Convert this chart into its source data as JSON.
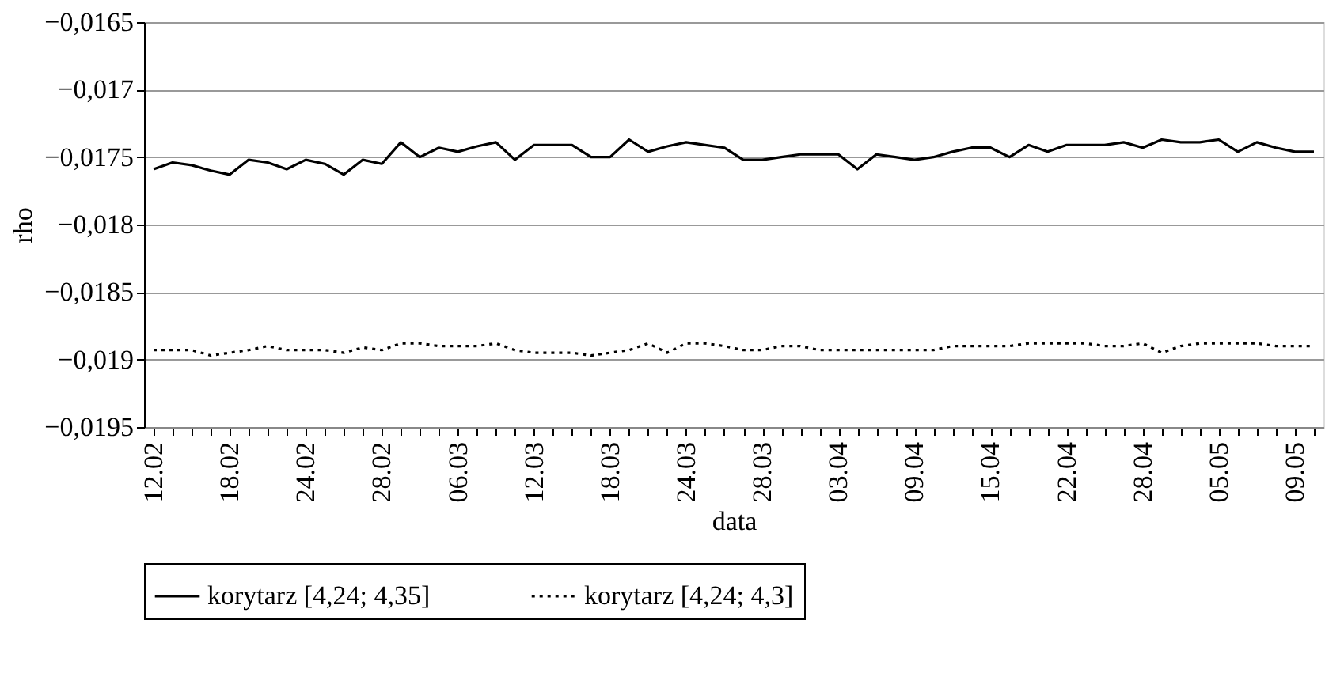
{
  "chart_data": {
    "type": "line",
    "xlabel": "data",
    "ylabel": "rho",
    "categories": [
      "12.02",
      null,
      null,
      null,
      "18.02",
      null,
      null,
      null,
      "24.02",
      null,
      null,
      null,
      "28.02",
      null,
      null,
      null,
      "06.03",
      null,
      null,
      null,
      "12.03",
      null,
      null,
      null,
      "18.03",
      null,
      null,
      null,
      "24.03",
      null,
      null,
      null,
      "28.03",
      null,
      null,
      null,
      "03.04",
      null,
      null,
      null,
      "09.04",
      null,
      null,
      null,
      "15.04",
      null,
      null,
      null,
      "22.04",
      null,
      null,
      null,
      "28.04",
      null,
      null,
      null,
      "05.05",
      null,
      null,
      null,
      "09.05",
      null
    ],
    "series": [
      {
        "name": "korytarz [4,24; 4,35]",
        "color": "#000000",
        "line_style": "solid",
        "values": [
          -0.01759,
          -0.01754,
          -0.01756,
          -0.0176,
          -0.01763,
          -0.01752,
          -0.01754,
          -0.01759,
          -0.01752,
          -0.01755,
          -0.01763,
          -0.01752,
          -0.01755,
          -0.01739,
          -0.0175,
          -0.01743,
          -0.01746,
          -0.01742,
          -0.01739,
          -0.01752,
          -0.01741,
          -0.01741,
          -0.01741,
          -0.0175,
          -0.0175,
          -0.01737,
          -0.01746,
          -0.01742,
          -0.01739,
          -0.01741,
          -0.01743,
          -0.01752,
          -0.01752,
          -0.0175,
          -0.01748,
          -0.01748,
          -0.01748,
          -0.01759,
          -0.01748,
          -0.0175,
          -0.01752,
          -0.0175,
          -0.01746,
          -0.01743,
          -0.01743,
          -0.0175,
          -0.01741,
          -0.01746,
          -0.01741,
          -0.01741,
          -0.01741,
          -0.01739,
          -0.01743,
          -0.01737,
          -0.01739,
          -0.01739,
          -0.01737,
          -0.01746,
          -0.01739,
          -0.01743,
          -0.01746,
          -0.01746
        ]
      },
      {
        "name": "korytarz [4,24; 4,3]",
        "color": "#000000",
        "line_style": "dotted",
        "values": [
          -0.01893,
          -0.01893,
          -0.01893,
          -0.01897,
          -0.01895,
          -0.01893,
          -0.0189,
          -0.01893,
          -0.01893,
          -0.01893,
          -0.01895,
          -0.01891,
          -0.01893,
          -0.01888,
          -0.01888,
          -0.0189,
          -0.0189,
          -0.0189,
          -0.01888,
          -0.01893,
          -0.01895,
          -0.01895,
          -0.01895,
          -0.01897,
          -0.01895,
          -0.01893,
          -0.01888,
          -0.01895,
          -0.01888,
          -0.01888,
          -0.0189,
          -0.01893,
          -0.01893,
          -0.0189,
          -0.0189,
          -0.01893,
          -0.01893,
          -0.01893,
          -0.01893,
          -0.01893,
          -0.01893,
          -0.01893,
          -0.0189,
          -0.0189,
          -0.0189,
          -0.0189,
          -0.01888,
          -0.01888,
          -0.01888,
          -0.01888,
          -0.0189,
          -0.0189,
          -0.01888,
          -0.01895,
          -0.0189,
          -0.01888,
          -0.01888,
          -0.01888,
          -0.01888,
          -0.0189,
          -0.0189,
          -0.0189
        ]
      }
    ],
    "ylim": [
      -0.0195,
      -0.0165
    ],
    "yticks": [
      {
        "value": -0.0195,
        "label": "−0,0195"
      },
      {
        "value": -0.019,
        "label": "−0,019"
      },
      {
        "value": -0.0185,
        "label": "−0,0185"
      },
      {
        "value": -0.018,
        "label": "−0,018"
      },
      {
        "value": -0.0175,
        "label": "−0,0175"
      },
      {
        "value": -0.017,
        "label": "−0,017"
      },
      {
        "value": -0.0165,
        "label": "−0,0165"
      }
    ],
    "grid": "y",
    "legend": "bottom",
    "marker": "none"
  }
}
